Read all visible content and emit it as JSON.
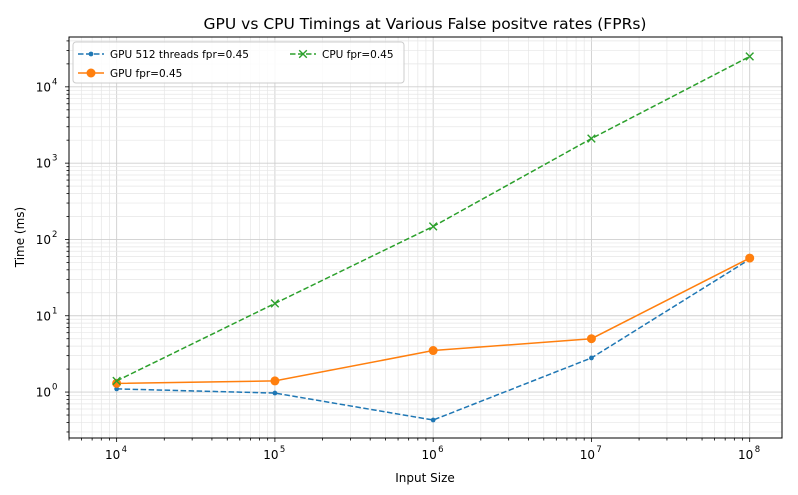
{
  "chart_data": {
    "type": "line",
    "title": "GPU vs CPU Timings at Various False positve rates (FPRs)",
    "xlabel": "Input Size",
    "ylabel": "Time (ms)",
    "x_scale": "log",
    "y_scale": "log",
    "xlim": [
      5000,
      160000000
    ],
    "ylim": [
      0.25,
      45000
    ],
    "x_ticks": [
      {
        "base": "10",
        "exp": "4",
        "value": 10000
      },
      {
        "base": "10",
        "exp": "5",
        "value": 100000
      },
      {
        "base": "10",
        "exp": "6",
        "value": 1000000
      },
      {
        "base": "10",
        "exp": "7",
        "value": 10000000
      },
      {
        "base": "10",
        "exp": "8",
        "value": 100000000
      }
    ],
    "y_ticks": [
      {
        "base": "10",
        "exp": "0",
        "value": 1
      },
      {
        "base": "10",
        "exp": "1",
        "value": 10
      },
      {
        "base": "10",
        "exp": "2",
        "value": 100
      },
      {
        "base": "10",
        "exp": "3",
        "value": 1000
      },
      {
        "base": "10",
        "exp": "4",
        "value": 10000
      }
    ],
    "grid": true,
    "legend_position": "top-left",
    "x": [
      10000,
      100000,
      1000000,
      10000000,
      100000000
    ],
    "series": [
      {
        "name": "GPU 512 threads fpr=0.45",
        "values": [
          1.1,
          0.97,
          0.43,
          2.8,
          55
        ],
        "color": "#1f77b4",
        "linestyle": "dashed",
        "marker": "dot"
      },
      {
        "name": "GPU fpr=0.45",
        "values": [
          1.3,
          1.4,
          3.5,
          5.0,
          57
        ],
        "color": "#ff7f0e",
        "linestyle": "solid",
        "marker": "circle"
      },
      {
        "name": "CPU fpr=0.45",
        "values": [
          1.4,
          14.5,
          148,
          2100,
          25000
        ],
        "color": "#2ca02c",
        "linestyle": "dashed",
        "marker": "x"
      }
    ]
  }
}
